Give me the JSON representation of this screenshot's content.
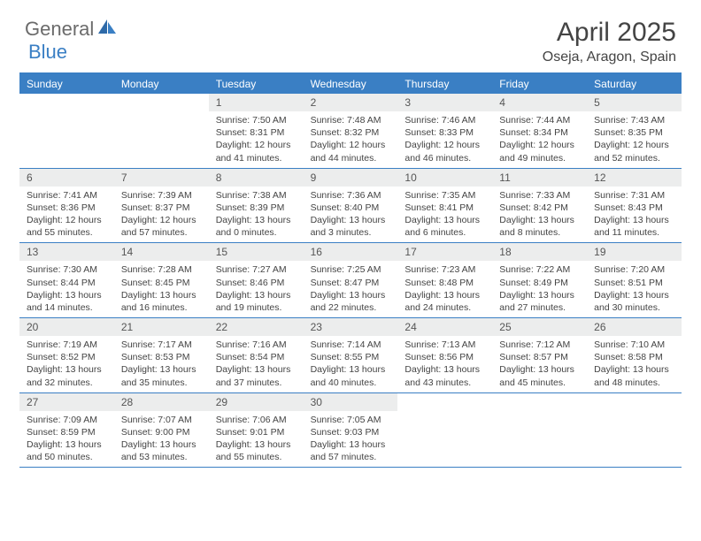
{
  "logo": {
    "part1": "General",
    "part2": "Blue"
  },
  "title": "April 2025",
  "location": "Oseja, Aragon, Spain",
  "colors": {
    "accent": "#3a7fc4",
    "header_bg": "#3a7fc4",
    "daynum_bg": "#eceded",
    "text": "#444444",
    "logo_gray": "#6b6b6b"
  },
  "weekdays": [
    "Sunday",
    "Monday",
    "Tuesday",
    "Wednesday",
    "Thursday",
    "Friday",
    "Saturday"
  ],
  "weeks": [
    [
      null,
      null,
      {
        "n": "1",
        "sr": "7:50 AM",
        "ss": "8:31 PM",
        "dl": "12 hours and 41 minutes."
      },
      {
        "n": "2",
        "sr": "7:48 AM",
        "ss": "8:32 PM",
        "dl": "12 hours and 44 minutes."
      },
      {
        "n": "3",
        "sr": "7:46 AM",
        "ss": "8:33 PM",
        "dl": "12 hours and 46 minutes."
      },
      {
        "n": "4",
        "sr": "7:44 AM",
        "ss": "8:34 PM",
        "dl": "12 hours and 49 minutes."
      },
      {
        "n": "5",
        "sr": "7:43 AM",
        "ss": "8:35 PM",
        "dl": "12 hours and 52 minutes."
      }
    ],
    [
      {
        "n": "6",
        "sr": "7:41 AM",
        "ss": "8:36 PM",
        "dl": "12 hours and 55 minutes."
      },
      {
        "n": "7",
        "sr": "7:39 AM",
        "ss": "8:37 PM",
        "dl": "12 hours and 57 minutes."
      },
      {
        "n": "8",
        "sr": "7:38 AM",
        "ss": "8:39 PM",
        "dl": "13 hours and 0 minutes."
      },
      {
        "n": "9",
        "sr": "7:36 AM",
        "ss": "8:40 PM",
        "dl": "13 hours and 3 minutes."
      },
      {
        "n": "10",
        "sr": "7:35 AM",
        "ss": "8:41 PM",
        "dl": "13 hours and 6 minutes."
      },
      {
        "n": "11",
        "sr": "7:33 AM",
        "ss": "8:42 PM",
        "dl": "13 hours and 8 minutes."
      },
      {
        "n": "12",
        "sr": "7:31 AM",
        "ss": "8:43 PM",
        "dl": "13 hours and 11 minutes."
      }
    ],
    [
      {
        "n": "13",
        "sr": "7:30 AM",
        "ss": "8:44 PM",
        "dl": "13 hours and 14 minutes."
      },
      {
        "n": "14",
        "sr": "7:28 AM",
        "ss": "8:45 PM",
        "dl": "13 hours and 16 minutes."
      },
      {
        "n": "15",
        "sr": "7:27 AM",
        "ss": "8:46 PM",
        "dl": "13 hours and 19 minutes."
      },
      {
        "n": "16",
        "sr": "7:25 AM",
        "ss": "8:47 PM",
        "dl": "13 hours and 22 minutes."
      },
      {
        "n": "17",
        "sr": "7:23 AM",
        "ss": "8:48 PM",
        "dl": "13 hours and 24 minutes."
      },
      {
        "n": "18",
        "sr": "7:22 AM",
        "ss": "8:49 PM",
        "dl": "13 hours and 27 minutes."
      },
      {
        "n": "19",
        "sr": "7:20 AM",
        "ss": "8:51 PM",
        "dl": "13 hours and 30 minutes."
      }
    ],
    [
      {
        "n": "20",
        "sr": "7:19 AM",
        "ss": "8:52 PM",
        "dl": "13 hours and 32 minutes."
      },
      {
        "n": "21",
        "sr": "7:17 AM",
        "ss": "8:53 PM",
        "dl": "13 hours and 35 minutes."
      },
      {
        "n": "22",
        "sr": "7:16 AM",
        "ss": "8:54 PM",
        "dl": "13 hours and 37 minutes."
      },
      {
        "n": "23",
        "sr": "7:14 AM",
        "ss": "8:55 PM",
        "dl": "13 hours and 40 minutes."
      },
      {
        "n": "24",
        "sr": "7:13 AM",
        "ss": "8:56 PM",
        "dl": "13 hours and 43 minutes."
      },
      {
        "n": "25",
        "sr": "7:12 AM",
        "ss": "8:57 PM",
        "dl": "13 hours and 45 minutes."
      },
      {
        "n": "26",
        "sr": "7:10 AM",
        "ss": "8:58 PM",
        "dl": "13 hours and 48 minutes."
      }
    ],
    [
      {
        "n": "27",
        "sr": "7:09 AM",
        "ss": "8:59 PM",
        "dl": "13 hours and 50 minutes."
      },
      {
        "n": "28",
        "sr": "7:07 AM",
        "ss": "9:00 PM",
        "dl": "13 hours and 53 minutes."
      },
      {
        "n": "29",
        "sr": "7:06 AM",
        "ss": "9:01 PM",
        "dl": "13 hours and 55 minutes."
      },
      {
        "n": "30",
        "sr": "7:05 AM",
        "ss": "9:03 PM",
        "dl": "13 hours and 57 minutes."
      },
      null,
      null,
      null
    ]
  ],
  "labels": {
    "sunrise": "Sunrise:",
    "sunset": "Sunset:",
    "daylight": "Daylight:"
  }
}
